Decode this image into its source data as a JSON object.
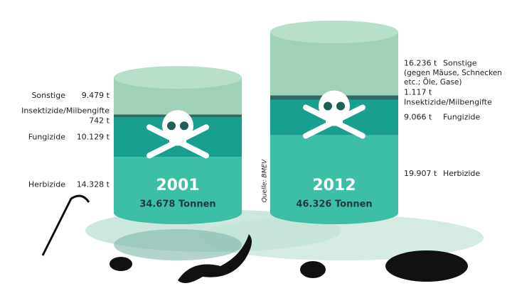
{
  "chart_data": {
    "type": "stacked-barrel",
    "categories": [
      "2001",
      "2012"
    ],
    "series": [
      {
        "name": "Herbizide",
        "color": "#3dbfa6",
        "values": [
          14328,
          19907
        ],
        "value_labels": [
          "14.328 t",
          "19.907 t"
        ]
      },
      {
        "name": "Fungizide",
        "color": "#18a08e",
        "values": [
          10129,
          9066
        ],
        "value_labels": [
          "10.129 t",
          "9.066 t"
        ]
      },
      {
        "name": "Insektizide/Milbengifte",
        "color": "#2d6b64",
        "values": [
          742,
          1117
        ],
        "value_labels": [
          "742 t",
          "1.117 t"
        ]
      },
      {
        "name": "Sonstige",
        "color": "#9fd2b9",
        "values": [
          9479,
          16236
        ],
        "value_labels": [
          "9.479 t",
          "16.236 t"
        ],
        "note": "(gegen Mäuse, Schnecken etc.; Öle, Gase)"
      }
    ],
    "totals": [
      34678,
      46326
    ],
    "total_labels": [
      "34.678 Tonnen",
      "46.326 Tonnen"
    ],
    "source": "Quelle: BMEV"
  }
}
